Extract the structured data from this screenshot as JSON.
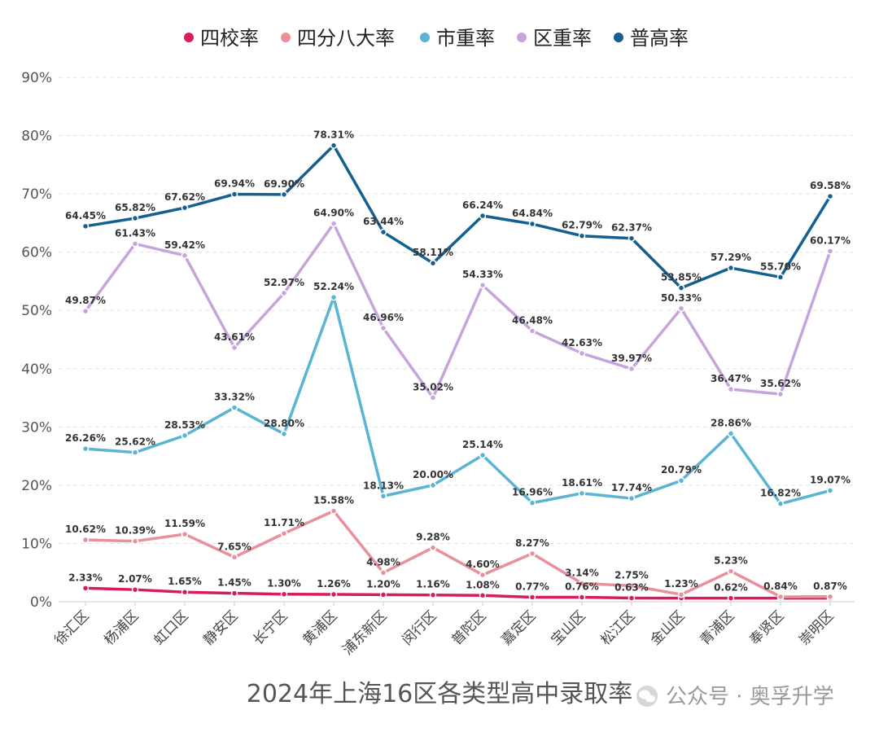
{
  "chart_data": {
    "type": "line",
    "title": "2024年上海16区各类型高中录取率",
    "xlabel": "",
    "ylabel": "",
    "ylim": [
      0,
      90
    ],
    "yticks": [
      "0%",
      "10%",
      "20%",
      "30%",
      "40%",
      "50%",
      "60%",
      "70%",
      "80%",
      "90%"
    ],
    "grid": true,
    "legend_position": "top",
    "categories": [
      "徐汇区",
      "杨浦区",
      "虹口区",
      "静安区",
      "长宁区",
      "黄浦区",
      "浦东新区",
      "闵行区",
      "普陀区",
      "嘉定区",
      "宝山区",
      "松江区",
      "金山区",
      "青浦区",
      "奉贤区",
      "崇明区"
    ],
    "series": [
      {
        "name": "四校率",
        "color": "#d81b60",
        "values": [
          2.33,
          2.07,
          1.65,
          1.45,
          1.3,
          1.26,
          1.2,
          1.16,
          1.08,
          0.77,
          0.76,
          0.63,
          0.62,
          0.62,
          0.61,
          0.61
        ],
        "labels": [
          "2.33%",
          "2.07%",
          "1.65%",
          "1.45%",
          "1.30%",
          "1.26%",
          "1.20%",
          "1.16%",
          "1.08%",
          "0.77%",
          "0.76%",
          "0.63%",
          "",
          "0.62%",
          "",
          ""
        ]
      },
      {
        "name": "四分八大率",
        "color": "#e8909c",
        "values": [
          10.62,
          10.39,
          11.59,
          7.65,
          11.71,
          15.58,
          4.98,
          9.28,
          4.6,
          8.27,
          3.14,
          2.75,
          1.23,
          5.23,
          0.84,
          0.87
        ],
        "labels": [
          "10.62%",
          "10.39%",
          "11.59%",
          "7.65%",
          "11.71%",
          "15.58%",
          "4.98%",
          "9.28%",
          "4.60%",
          "8.27%",
          "3.14%",
          "2.75%",
          "1.23%",
          "5.23%",
          "0.84%",
          "0.87%"
        ]
      },
      {
        "name": "市重率",
        "color": "#5ab4d2",
        "values": [
          26.26,
          25.62,
          28.53,
          33.32,
          28.8,
          52.24,
          18.13,
          20.0,
          25.14,
          16.96,
          18.61,
          17.74,
          20.79,
          28.86,
          16.82,
          19.07
        ],
        "labels": [
          "26.26%",
          "25.62%",
          "28.53%",
          "33.32%",
          "28.80%",
          "52.24%",
          "18.13%",
          "20.00%",
          "25.14%",
          "16.96%",
          "18.61%",
          "17.74%",
          "20.79%",
          "28.86%",
          "16.82%",
          "19.07%"
        ]
      },
      {
        "name": "区重率",
        "color": "#c6a5dc",
        "values": [
          49.87,
          61.43,
          59.42,
          43.61,
          52.97,
          64.9,
          46.96,
          35.02,
          54.33,
          46.48,
          42.63,
          39.97,
          50.33,
          36.47,
          35.62,
          60.17
        ],
        "labels": [
          "49.87%",
          "61.43%",
          "59.42%",
          "43.61%",
          "52.97%",
          "64.90%",
          "46.96%",
          "35.02%",
          "54.33%",
          "46.48%",
          "42.63%",
          "39.97%",
          "50.33%",
          "36.47%",
          "35.62%",
          "60.17%"
        ]
      },
      {
        "name": "普高率",
        "color": "#14608f",
        "values": [
          64.45,
          65.82,
          67.62,
          69.94,
          69.9,
          78.31,
          63.44,
          58.11,
          66.24,
          64.84,
          62.79,
          62.37,
          53.85,
          57.29,
          55.7,
          69.58
        ],
        "labels": [
          "64.45%",
          "65.82%",
          "67.62%",
          "69.94%",
          "69.90%",
          "78.31%",
          "63.44%",
          "58.11%",
          "66.24%",
          "64.84%",
          "62.79%",
          "62.37%",
          "53.85%",
          "57.29%",
          "55.70%",
          "69.58%"
        ]
      }
    ]
  },
  "watermark": {
    "text": "公众号 · 奥孚升学",
    "icon": "wechat-icon"
  }
}
